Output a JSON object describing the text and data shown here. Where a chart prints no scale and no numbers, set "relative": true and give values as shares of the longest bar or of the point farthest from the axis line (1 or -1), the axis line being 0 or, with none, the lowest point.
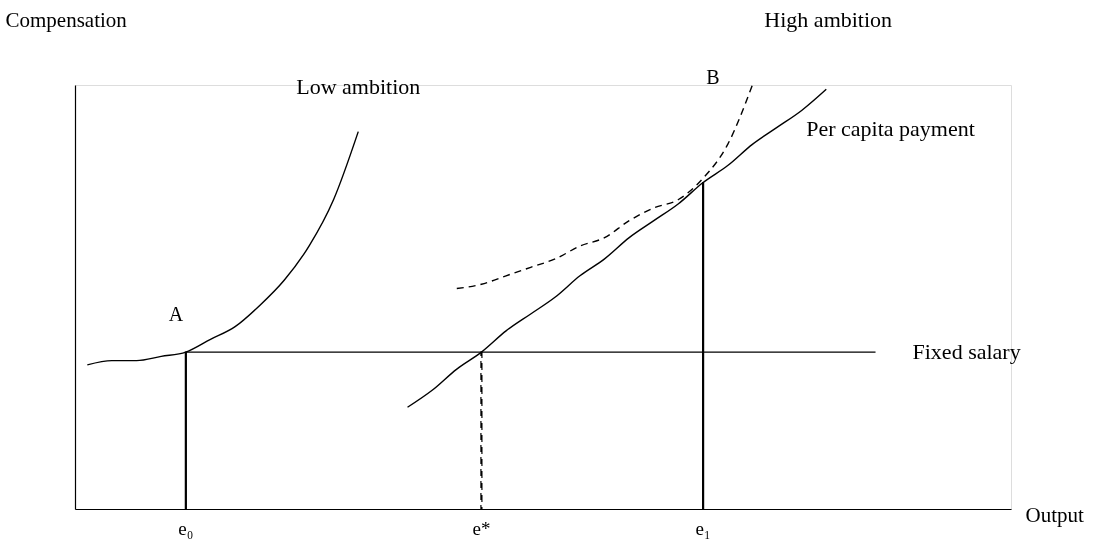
{
  "chart_data": {
    "type": "line",
    "relative": true,
    "xlabel": "Output",
    "ylabel": "Compensation",
    "tick_labels": "x",
    "grid": false,
    "categories": [
      null,
      null,
      null,
      null,
      "e₀",
      null,
      null,
      null,
      null,
      null,
      null,
      null,
      null,
      null,
      null,
      null,
      "e*",
      null,
      null,
      null,
      null,
      null,
      null,
      null,
      null,
      "e₁",
      null,
      null,
      null,
      null,
      null,
      null,
      null,
      null,
      null,
      null,
      null,
      null
    ],
    "series": [
      {
        "name": "Low ambition",
        "color": "#000000",
        "line_style": "solid",
        "values": [
          0.34,
          0.35,
          0.35,
          0.36,
          0.37,
          0.4,
          0.43,
          0.48,
          0.54,
          0.62,
          0.73,
          0.89,
          null,
          null,
          null,
          null,
          null,
          null,
          null,
          null,
          null,
          null,
          null,
          null,
          null,
          null,
          null,
          null,
          null,
          null,
          null,
          null,
          null,
          null,
          null,
          null,
          null,
          null
        ]
      },
      {
        "name": "Fixed salary",
        "color": "#000000",
        "line_style": "solid",
        "values": [
          null,
          null,
          null,
          null,
          0.37,
          0.37,
          0.37,
          0.37,
          0.37,
          0.37,
          0.37,
          0.37,
          0.37,
          0.37,
          0.37,
          0.37,
          0.37,
          0.37,
          0.37,
          0.37,
          0.37,
          0.37,
          0.37,
          0.37,
          0.37,
          0.37,
          0.37,
          0.37,
          0.37,
          0.37,
          0.37,
          0.37,
          0.37,
          null,
          null,
          null,
          null,
          null
        ]
      },
      {
        "name": "Per capita payment",
        "color": "#000000",
        "line_style": "solid",
        "values": [
          null,
          null,
          null,
          null,
          null,
          null,
          null,
          null,
          null,
          null,
          null,
          null,
          null,
          0.24,
          0.28,
          0.33,
          0.37,
          0.42,
          0.46,
          0.5,
          0.55,
          0.59,
          0.64,
          0.68,
          0.72,
          0.77,
          0.81,
          0.86,
          0.9,
          0.94,
          0.99,
          null,
          null,
          null,
          null,
          null,
          null,
          null
        ]
      },
      {
        "name": "High ambition",
        "color": "#000000",
        "line_style": "dashed",
        "values": [
          null,
          null,
          null,
          null,
          null,
          null,
          null,
          null,
          null,
          null,
          null,
          null,
          null,
          null,
          null,
          0.52,
          0.53,
          0.55,
          0.57,
          0.59,
          0.62,
          0.64,
          0.68,
          0.71,
          0.73,
          0.78,
          0.86,
          1.0,
          null,
          null,
          null,
          null,
          null,
          null,
          null,
          null,
          null,
          null
        ]
      },
      {
        "type": "bar",
        "color": "#000000",
        "line_style": "solid",
        "values": [
          null,
          null,
          null,
          null,
          0.37,
          null,
          null,
          null,
          null,
          null,
          null,
          null,
          null,
          null,
          null,
          null,
          null,
          null,
          null,
          null,
          null,
          null,
          null,
          null,
          null,
          0.77,
          null,
          null,
          null,
          null,
          null,
          null,
          null,
          null,
          null,
          null,
          null,
          null
        ]
      },
      {
        "type": "bar",
        "color": "#000000",
        "line_style": "dashed",
        "values": [
          null,
          null,
          null,
          null,
          null,
          null,
          null,
          null,
          null,
          null,
          null,
          null,
          null,
          null,
          null,
          null,
          0.37,
          null,
          null,
          null,
          null,
          null,
          null,
          null,
          null,
          null,
          null,
          null,
          null,
          null,
          null,
          null,
          null,
          null,
          null,
          null,
          null,
          null
        ]
      }
    ],
    "annotations": [
      "A",
      "B"
    ]
  }
}
